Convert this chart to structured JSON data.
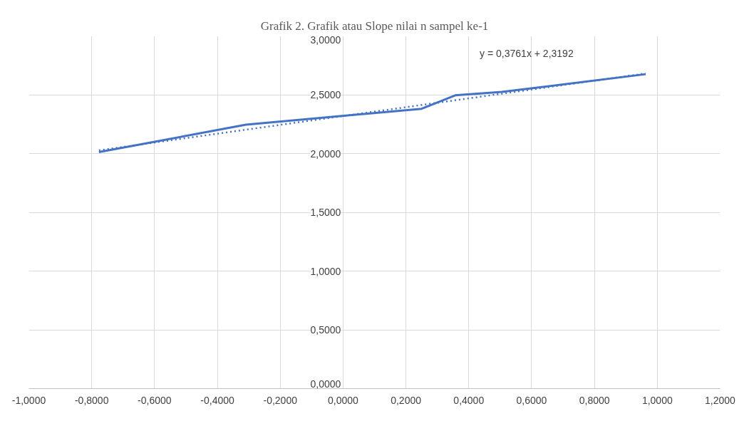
{
  "chart_data": {
    "type": "line",
    "title": "Grafik 2. Grafik atau Slope nilai n sampel ke-1",
    "series": [
      {
        "color": "#4472c4",
        "x": [
          -0.777,
          -0.309,
          0.25,
          0.357,
          0.505,
          0.963
        ],
        "values": [
          2.012,
          2.245,
          2.381,
          2.495,
          2.524,
          2.675
        ]
      },
      {
        "color": "#4472c4",
        "line_style": "dotted",
        "x": [
          -0.777,
          0.963
        ],
        "values": [
          2.027,
          2.681
        ]
      }
    ],
    "annotations": [
      "y = 0,3761x + 2,3192"
    ],
    "xlim": [
      -1.0,
      1.2
    ],
    "ylim": [
      0,
      3.0
    ],
    "xticks": [
      {
        "value": -1.0,
        "label": "-1,0000"
      },
      {
        "value": -0.8,
        "label": "-0,8000"
      },
      {
        "value": -0.6,
        "label": "-0,6000"
      },
      {
        "value": -0.4,
        "label": "-0,4000"
      },
      {
        "value": -0.2,
        "label": "-0,2000"
      },
      {
        "value": 0,
        "label": "0,0000"
      },
      {
        "value": 0.2,
        "label": "0,2000"
      },
      {
        "value": 0.4,
        "label": "0,4000"
      },
      {
        "value": 0.6,
        "label": "0,6000"
      },
      {
        "value": 0.8,
        "label": "0,8000"
      },
      {
        "value": 1.0,
        "label": "1,0000"
      },
      {
        "value": 1.2,
        "label": "1,2000"
      }
    ],
    "yticks": [
      {
        "value": 0,
        "label": "0,0000"
      },
      {
        "value": 0.5,
        "label": "0,5000"
      },
      {
        "value": 1.0,
        "label": "1,0000"
      },
      {
        "value": 1.5,
        "label": "1,5000"
      },
      {
        "value": 2.0,
        "label": "2,0000"
      },
      {
        "value": 2.5,
        "label": "2,5000"
      },
      {
        "value": 3.0,
        "label": "3,0000"
      }
    ],
    "grid": true,
    "marker": "none",
    "line_style": "solid"
  }
}
